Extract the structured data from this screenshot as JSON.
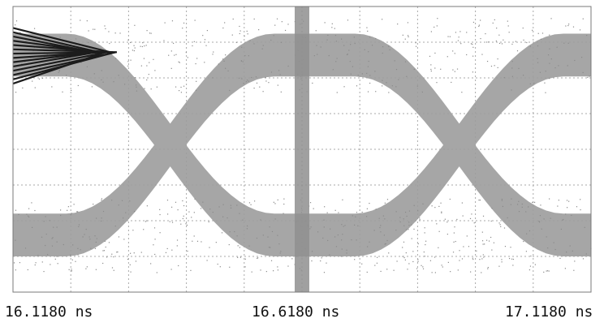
{
  "colors": {
    "background": "#ffffff",
    "grid": "#a9a9a9",
    "eye_fill": "#9c9c9c",
    "overlay_trace": "#1c1c1c",
    "text": "#111111"
  },
  "chart_data": {
    "type": "scatter",
    "subtype": "eye-diagram",
    "title": "",
    "xlabel": "",
    "ylabel": "",
    "x_unit": "ns",
    "xlim": [
      16.118,
      17.118
    ],
    "ylim": [
      0,
      1
    ],
    "grid": true,
    "grid_divisions": {
      "x": 10,
      "y": 8
    },
    "x_tick_labels": [
      "16.1180 ns",
      "16.6180 ns",
      "17.1180 ns"
    ],
    "x_tick_values": [
      16.118,
      16.618,
      17.118
    ],
    "unit_intervals": 2,
    "crossings_ns": [
      16.39,
      16.89
    ],
    "levels": {
      "high": 0.83,
      "low": 0.2
    },
    "marker_ns": 16.618
  }
}
